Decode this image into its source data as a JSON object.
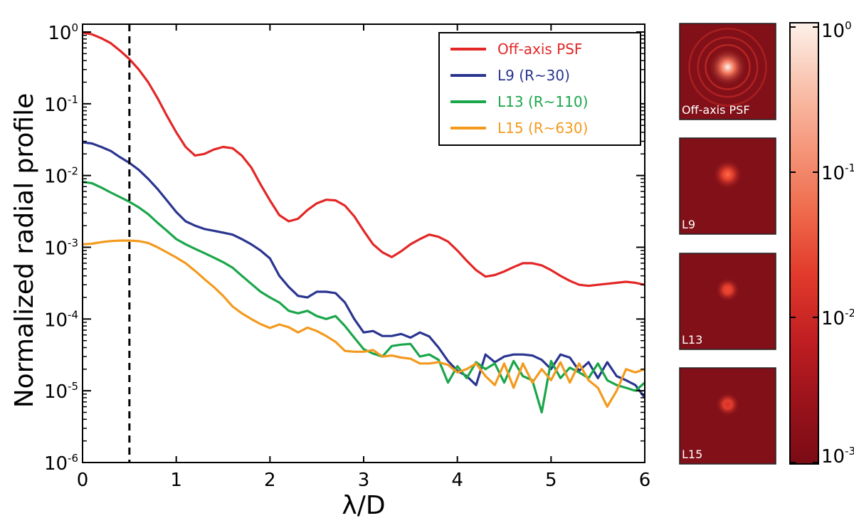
{
  "chart_data": {
    "type": "line",
    "title": "",
    "xlabel": "λ/D",
    "ylabel": "Normalized radial profile",
    "x_scale": "linear",
    "y_scale": "log",
    "xlim": [
      0,
      6
    ],
    "ylim": [
      1e-06,
      1.3
    ],
    "x_ticks": [
      "0",
      "1",
      "2",
      "3",
      "4",
      "5",
      "6"
    ],
    "y_ticks": [
      {
        "base": "10",
        "exp": "0"
      },
      {
        "base": "10",
        "exp": "-1"
      },
      {
        "base": "10",
        "exp": "-2"
      },
      {
        "base": "10",
        "exp": "-3"
      },
      {
        "base": "10",
        "exp": "-4"
      },
      {
        "base": "10",
        "exp": "-5"
      },
      {
        "base": "10",
        "exp": "-6"
      }
    ],
    "vertical_reference": {
      "x": 0.5,
      "style": "dashed"
    },
    "legend_position": "top-right",
    "series": [
      {
        "name": "Off-axis PSF",
        "color": "#e32626",
        "x": [
          0,
          0.1,
          0.2,
          0.3,
          0.4,
          0.5,
          0.6,
          0.7,
          0.8,
          0.9,
          1.0,
          1.1,
          1.2,
          1.3,
          1.4,
          1.5,
          1.6,
          1.7,
          1.8,
          1.9,
          2.0,
          2.1,
          2.2,
          2.3,
          2.4,
          2.5,
          2.6,
          2.7,
          2.8,
          2.9,
          3.0,
          3.1,
          3.2,
          3.3,
          3.4,
          3.5,
          3.6,
          3.7,
          3.8,
          3.9,
          4.0,
          4.1,
          4.2,
          4.3,
          4.4,
          4.5,
          4.6,
          4.7,
          4.8,
          4.9,
          5.0,
          5.1,
          5.2,
          5.3,
          5.4,
          5.5,
          5.6,
          5.7,
          5.8,
          5.9,
          6.0
        ],
        "y": [
          0.98,
          0.93,
          0.82,
          0.7,
          0.55,
          0.42,
          0.3,
          0.2,
          0.12,
          0.068,
          0.04,
          0.025,
          0.019,
          0.02,
          0.023,
          0.025,
          0.024,
          0.019,
          0.013,
          0.0075,
          0.0045,
          0.0028,
          0.0023,
          0.0025,
          0.0033,
          0.0041,
          0.0046,
          0.0045,
          0.0038,
          0.0027,
          0.0017,
          0.0011,
          0.00085,
          0.00073,
          0.00088,
          0.0011,
          0.0013,
          0.0015,
          0.0014,
          0.0012,
          0.0009,
          0.00065,
          0.00048,
          0.00039,
          0.00041,
          0.00046,
          0.00053,
          0.0006,
          0.0006,
          0.00056,
          0.00048,
          0.0004,
          0.00034,
          0.0003,
          0.00029,
          0.0003,
          0.00031,
          0.00032,
          0.00033,
          0.00032,
          0.0003
        ]
      },
      {
        "name": "L9 (R~30)",
        "color": "#2a3590",
        "x": [
          0,
          0.1,
          0.2,
          0.3,
          0.4,
          0.5,
          0.6,
          0.7,
          0.8,
          0.9,
          1.0,
          1.1,
          1.2,
          1.3,
          1.4,
          1.5,
          1.6,
          1.7,
          1.8,
          1.9,
          2.0,
          2.1,
          2.2,
          2.3,
          2.4,
          2.5,
          2.6,
          2.7,
          2.8,
          2.9,
          3.0,
          3.1,
          3.2,
          3.3,
          3.4,
          3.5,
          3.6,
          3.7,
          3.8,
          3.9,
          4.0,
          4.1,
          4.2,
          4.3,
          4.4,
          4.5,
          4.6,
          4.7,
          4.8,
          4.9,
          5.0,
          5.1,
          5.2,
          5.3,
          5.4,
          5.5,
          5.6,
          5.7,
          5.8,
          5.9,
          6.0
        ],
        "y": [
          0.029,
          0.028,
          0.025,
          0.022,
          0.018,
          0.015,
          0.012,
          0.009,
          0.0065,
          0.0045,
          0.0031,
          0.0023,
          0.002,
          0.0018,
          0.0017,
          0.0016,
          0.0015,
          0.0013,
          0.0011,
          0.0009,
          0.0007,
          0.0004,
          0.00028,
          0.00021,
          0.0002,
          0.00024,
          0.00024,
          0.00023,
          0.00017,
          0.0001,
          6.5e-05,
          6.8e-05,
          5.8e-05,
          5.8e-05,
          6.2e-05,
          5.5e-05,
          6.5e-05,
          5.7e-05,
          4e-05,
          2.6e-05,
          1.9e-05,
          1.6e-05,
          1.2e-05,
          3.2e-05,
          2.5e-05,
          3e-05,
          3.2e-05,
          3.2e-05,
          3.1e-05,
          2.7e-05,
          2e-05,
          3.2e-05,
          2.9e-05,
          1.9e-05,
          2.5e-05,
          1.5e-05,
          2.5e-05,
          1.6e-05,
          1.4e-05,
          1.2e-05,
          8e-06
        ]
      },
      {
        "name": "L13 (R~110)",
        "color": "#1aa64a",
        "x": [
          0,
          0.1,
          0.2,
          0.3,
          0.4,
          0.5,
          0.6,
          0.7,
          0.8,
          0.9,
          1.0,
          1.1,
          1.2,
          1.3,
          1.4,
          1.5,
          1.6,
          1.7,
          1.8,
          1.9,
          2.0,
          2.1,
          2.2,
          2.3,
          2.4,
          2.5,
          2.6,
          2.7,
          2.8,
          2.9,
          3.0,
          3.1,
          3.2,
          3.3,
          3.4,
          3.5,
          3.6,
          3.7,
          3.8,
          3.9,
          4.0,
          4.1,
          4.2,
          4.3,
          4.4,
          4.5,
          4.6,
          4.7,
          4.8,
          4.9,
          5.0,
          5.1,
          5.2,
          5.3,
          5.4,
          5.5,
          5.6,
          5.7,
          5.8,
          5.9,
          6.0
        ],
        "y": [
          0.0082,
          0.0078,
          0.0068,
          0.0058,
          0.005,
          0.0043,
          0.0036,
          0.0029,
          0.0022,
          0.0017,
          0.0013,
          0.0011,
          0.00095,
          0.00083,
          0.00072,
          0.00062,
          0.00052,
          0.0004,
          0.00031,
          0.00024,
          0.0002,
          0.00017,
          0.00013,
          0.00012,
          0.00013,
          0.00011,
          0.0001,
          0.00011,
          8e-05,
          5.5e-05,
          3.8e-05,
          3.3e-05,
          3e-05,
          4.2e-05,
          4.4e-05,
          4.5e-05,
          3e-05,
          3.2e-05,
          2.7e-05,
          1.3e-05,
          2.2e-05,
          1.5e-05,
          2.5e-05,
          2e-05,
          2.4e-05,
          1.3e-05,
          2.6e-05,
          1.6e-05,
          1.4e-05,
          5e-06,
          2.6e-05,
          1.5e-05,
          2.1e-05,
          1.8e-05,
          1.5e-05,
          2.4e-05,
          1.4e-05,
          1.2e-05,
          1.1e-05,
          1e-05,
          1.3e-05
        ]
      },
      {
        "name": "L15 (R~630)",
        "color": "#f39a1e",
        "x": [
          0,
          0.1,
          0.2,
          0.3,
          0.4,
          0.5,
          0.6,
          0.7,
          0.8,
          0.9,
          1.0,
          1.1,
          1.2,
          1.3,
          1.4,
          1.5,
          1.6,
          1.7,
          1.8,
          1.9,
          2.0,
          2.1,
          2.2,
          2.3,
          2.4,
          2.5,
          2.6,
          2.7,
          2.8,
          2.9,
          3.0,
          3.1,
          3.2,
          3.3,
          3.4,
          3.5,
          3.6,
          3.7,
          3.8,
          3.9,
          4.0,
          4.1,
          4.2,
          4.3,
          4.4,
          4.5,
          4.6,
          4.7,
          4.8,
          4.9,
          5.0,
          5.1,
          5.2,
          5.3,
          5.4,
          5.5,
          5.6,
          5.7,
          5.8,
          5.9,
          6.0
        ],
        "y": [
          0.0011,
          0.00112,
          0.00118,
          0.00122,
          0.00124,
          0.00124,
          0.00122,
          0.00115,
          0.001,
          0.00085,
          0.00072,
          0.0006,
          0.00047,
          0.00036,
          0.00028,
          0.00021,
          0.00015,
          0.00012,
          0.0001,
          8.5e-05,
          7.5e-05,
          8.4e-05,
          7.7e-05,
          6.5e-05,
          7.6e-05,
          6.8e-05,
          5.8e-05,
          4.8e-05,
          3.6e-05,
          3.5e-05,
          3.5e-05,
          3.7e-05,
          3e-05,
          3.1e-05,
          2.9e-05,
          2.8e-05,
          2.4e-05,
          2.4e-05,
          2.5e-05,
          2.3e-05,
          1.8e-05,
          2e-05,
          2.4e-05,
          1.6e-05,
          1.2e-05,
          2.4e-05,
          1.1e-05,
          2.4e-05,
          1.3e-05,
          2e-05,
          1.4e-05,
          2.5e-05,
          1.3e-05,
          2.4e-05,
          1.4e-05,
          1.1e-05,
          6e-06,
          1e-05,
          2e-05,
          1.8e-05,
          2e-05
        ]
      }
    ],
    "image_panels": [
      {
        "label": "Off-axis PSF",
        "core_brightness": 1.0,
        "core_size": 0.2,
        "rings": true
      },
      {
        "label": "L9",
        "core_brightness": 0.7,
        "core_size": 0.16,
        "rings": false
      },
      {
        "label": "L13",
        "core_brightness": 0.55,
        "core_size": 0.13,
        "rings": false
      },
      {
        "label": "L15",
        "core_brightness": 0.35,
        "core_size": 0.13,
        "rings": false
      }
    ],
    "colorbar": {
      "scale": "log",
      "min": 0.001,
      "max": 1,
      "colormap": [
        "#7a0b15",
        "#9b131b",
        "#c11f22",
        "#e23a2c",
        "#ef6a4c",
        "#f5967a",
        "#f9c2ad",
        "#fdf1ea"
      ],
      "tick_labels": [
        {
          "base": "10",
          "exp": "0"
        },
        {
          "base": "10",
          "exp": "-1"
        },
        {
          "base": "10",
          "exp": "-2"
        },
        {
          "base": "10",
          "exp": "-3"
        }
      ]
    }
  }
}
